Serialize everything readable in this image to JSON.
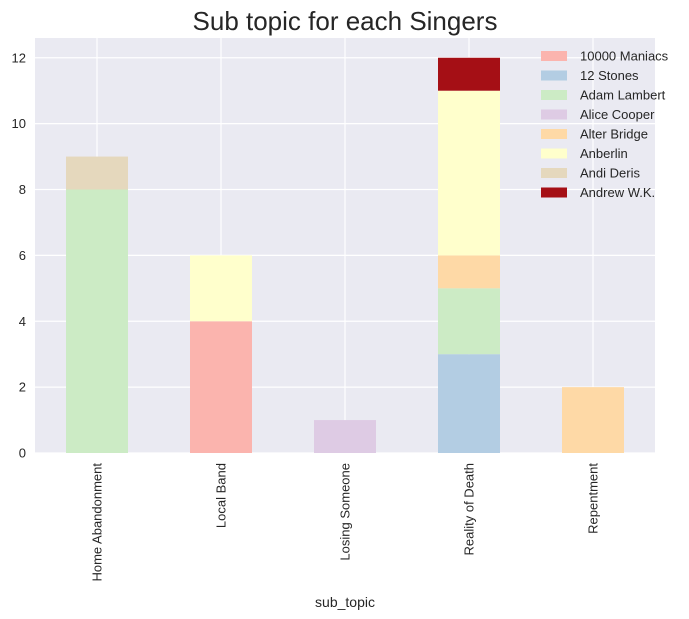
{
  "chart_data": {
    "type": "bar",
    "stacked": true,
    "title": "Sub topic for each Singers",
    "xlabel": "sub_topic",
    "ylabel": "",
    "ylim": [
      0,
      12.6
    ],
    "yticks": [
      0,
      2,
      4,
      6,
      8,
      10,
      12
    ],
    "grid": true,
    "legend_position": "top-right",
    "categories": [
      "Home Abandonment",
      "Local Band",
      "Losing Someone",
      "Reality of Death",
      "Repentment"
    ],
    "series": [
      {
        "name": "10000 Maniacs",
        "color": "#fbb4ae",
        "values": [
          0,
          4,
          0,
          0,
          0
        ]
      },
      {
        "name": "12 Stones",
        "color": "#b3cde3",
        "values": [
          0,
          0,
          0,
          3,
          0
        ]
      },
      {
        "name": "Adam Lambert",
        "color": "#ccebc5",
        "values": [
          8,
          0,
          0,
          2,
          0
        ]
      },
      {
        "name": "Alice Cooper",
        "color": "#decbe4",
        "values": [
          0,
          0,
          1,
          0,
          0
        ]
      },
      {
        "name": "Alter Bridge",
        "color": "#fed9a6",
        "values": [
          0,
          0,
          0,
          1,
          2
        ]
      },
      {
        "name": "Anberlin",
        "color": "#ffffcc",
        "values": [
          0,
          2,
          0,
          5,
          0
        ]
      },
      {
        "name": "Andi Deris",
        "color": "#e5d8bd",
        "values": [
          1,
          0,
          0,
          0,
          0
        ]
      },
      {
        "name": "Andrew W.K.",
        "color": "#a50f15",
        "values": [
          0,
          0,
          0,
          1,
          0
        ]
      }
    ],
    "colors": {
      "plot_background": "#eaeaf2",
      "grid": "#ffffff",
      "text": "#262626"
    }
  }
}
